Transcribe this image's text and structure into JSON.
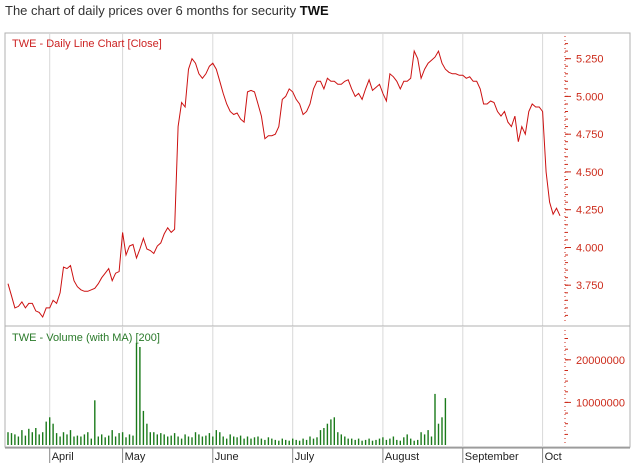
{
  "page": {
    "heading_prefix": "The chart of daily prices over 6 months for security ",
    "heading_symbol": "TWE"
  },
  "colors": {
    "price_line": "#cc1111",
    "price_title": "#cc2222",
    "volume_bars": "#1a7a1a",
    "volume_title": "#2a7a2a",
    "axis_ticks": "#cc2a1a",
    "grid": "#d8d8d8",
    "frame": "#b0b0b0"
  },
  "chart_data": [
    {
      "type": "line",
      "title": "TWE - Daily Line Chart [Close]",
      "ylim": [
        3.5,
        5.4
      ],
      "y_ticks": [
        "3.750",
        "4.000",
        "4.250",
        "4.500",
        "4.750",
        "5.000",
        "5.250"
      ],
      "y_tick_values": [
        3.75,
        4.0,
        4.25,
        4.5,
        4.75,
        5.0,
        5.25
      ],
      "month_labels": [
        "April",
        "May",
        "June",
        "July",
        "August",
        "September",
        "Oct"
      ],
      "grid": true,
      "series": [
        {
          "values": [
            3.76,
            3.68,
            3.6,
            3.61,
            3.64,
            3.6,
            3.63,
            3.63,
            3.58,
            3.57,
            3.54,
            3.6,
            3.6,
            3.65,
            3.63,
            3.7,
            3.87,
            3.86,
            3.88,
            3.78,
            3.74,
            3.72,
            3.71,
            3.71,
            3.72,
            3.73,
            3.76,
            3.8,
            3.83,
            3.86,
            3.78,
            3.83,
            3.84,
            4.1,
            3.95,
            4.01,
            4.02,
            3.93,
            3.99,
            4.06,
            3.99,
            3.98,
            3.96,
            4.01,
            4.03,
            4.09,
            4.13,
            4.1,
            4.12,
            4.8,
            4.96,
            4.93,
            5.18,
            5.25,
            5.22,
            5.15,
            5.12,
            5.15,
            5.2,
            5.22,
            5.18,
            5.1,
            5.02,
            4.95,
            4.9,
            4.88,
            4.89,
            4.85,
            4.83,
            5.03,
            5.04,
            5.03,
            4.95,
            4.87,
            4.72,
            4.74,
            4.74,
            4.75,
            4.8,
            4.98,
            5.0,
            5.05,
            5.03,
            4.98,
            4.95,
            4.88,
            4.9,
            4.95,
            5.05,
            5.1,
            5.1,
            5.05,
            5.12,
            5.1,
            5.1,
            5.08,
            5.08,
            5.1,
            5.11,
            5.05,
            5.0,
            5.02,
            4.98,
            5.05,
            5.11,
            5.04,
            5.06,
            5.08,
            5.02,
            4.97,
            5.15,
            5.13,
            5.1,
            5.05,
            5.1,
            5.1,
            5.12,
            5.3,
            5.25,
            5.12,
            5.18,
            5.22,
            5.24,
            5.26,
            5.3,
            5.22,
            5.18,
            5.16,
            5.15,
            5.15,
            5.14,
            5.14,
            5.12,
            5.13,
            5.1,
            5.1,
            5.05,
            4.95,
            4.95,
            4.97,
            4.96,
            4.9,
            4.87,
            4.9,
            4.83,
            4.8,
            4.87,
            4.7,
            4.8,
            4.75,
            4.9,
            4.95,
            4.93,
            4.93,
            4.9,
            4.5,
            4.3,
            4.22,
            4.26,
            4.21
          ]
        }
      ]
    },
    {
      "type": "bar",
      "title": "TWE - Volume (with MA) [200]",
      "ylim": [
        0,
        27000000
      ],
      "y_ticks": [
        "10000000",
        "20000000"
      ],
      "y_tick_values": [
        10000000,
        20000000
      ],
      "series": [
        {
          "values": [
            3000000,
            2800000,
            2500000,
            2000000,
            3500000,
            2200000,
            3800000,
            3000000,
            4000000,
            2500000,
            3000000,
            5500000,
            6500000,
            5000000,
            2800000,
            2000000,
            3000000,
            2500000,
            3500000,
            2000000,
            2200000,
            2000000,
            2500000,
            3000000,
            1500000,
            10500000,
            2000000,
            2500000,
            1800000,
            2200000,
            3500000,
            2000000,
            2800000,
            3000000,
            1800000,
            2500000,
            2200000,
            24000000,
            23000000,
            8000000,
            5000000,
            3000000,
            3000000,
            2500000,
            2800000,
            2500000,
            2000000,
            2200000,
            2800000,
            2000000,
            1500000,
            2500000,
            2000000,
            1800000,
            3000000,
            2500000,
            2000000,
            2200000,
            2800000,
            2000000,
            3500000,
            3000000,
            2000000,
            1500000,
            2500000,
            2000000,
            1800000,
            2200000,
            1500000,
            2000000,
            1500000,
            1800000,
            2000000,
            1500000,
            1200000,
            1800000,
            1500000,
            1200000,
            1000000,
            1500000,
            1200000,
            1000000,
            1500000,
            1200000,
            1000000,
            1500000,
            1200000,
            2000000,
            1500000,
            1800000,
            3500000,
            4000000,
            5000000,
            6000000,
            6500000,
            3000000,
            2500000,
            2000000,
            1500000,
            1500000,
            1200000,
            1500000,
            1000000,
            1200000,
            1500000,
            1000000,
            1200000,
            1500000,
            1800000,
            1200000,
            1500000,
            2000000,
            1200000,
            1000000,
            1800000,
            2500000,
            1500000,
            1000000,
            1200000,
            3000000,
            2500000,
            3500000,
            2000000,
            12000000,
            5000000,
            6500000,
            11000000
          ]
        }
      ]
    }
  ]
}
